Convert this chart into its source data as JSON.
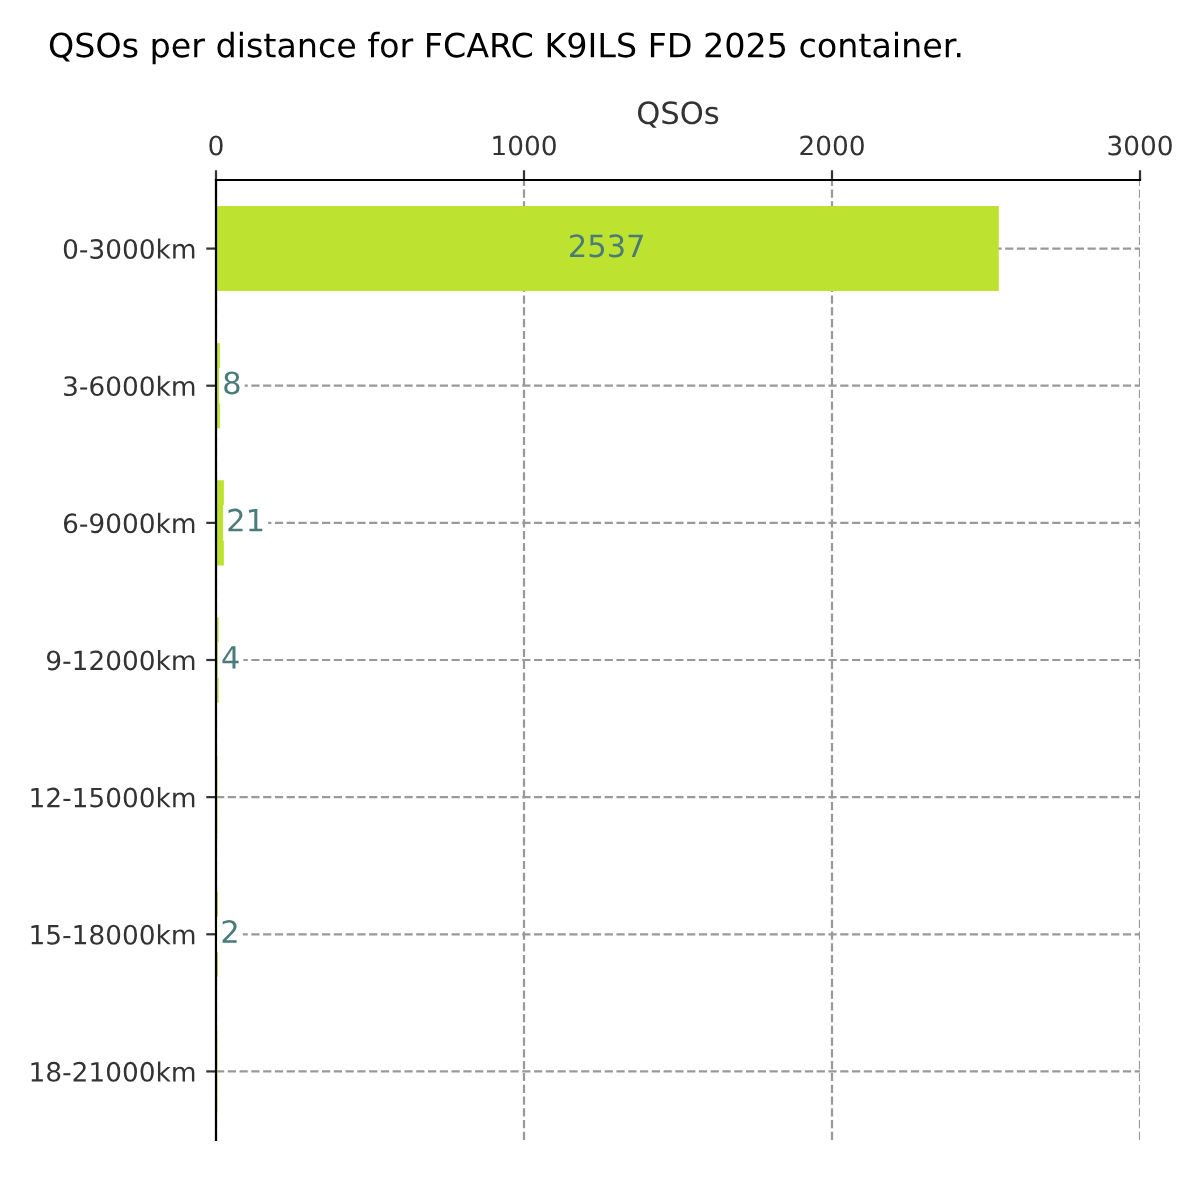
{
  "chart_data": {
    "type": "bar",
    "orientation": "horizontal",
    "title": "QSOs per distance for FCARC K9ILS FD 2025 container.",
    "xlabel": "QSOs",
    "categories": [
      "0-3000km",
      "3-6000km",
      "6-9000km",
      "9-12000km",
      "12-15000km",
      "15-18000km",
      "18-21000km"
    ],
    "values": [
      2537,
      8,
      21,
      4,
      0,
      2,
      0
    ],
    "value_labels": [
      "2537",
      "8",
      "21",
      "4",
      null,
      "2",
      null
    ],
    "color": "#bde22f",
    "xlim": [
      0,
      3000
    ],
    "xticks": [
      0,
      1000,
      2000,
      3000
    ],
    "grid": true
  }
}
